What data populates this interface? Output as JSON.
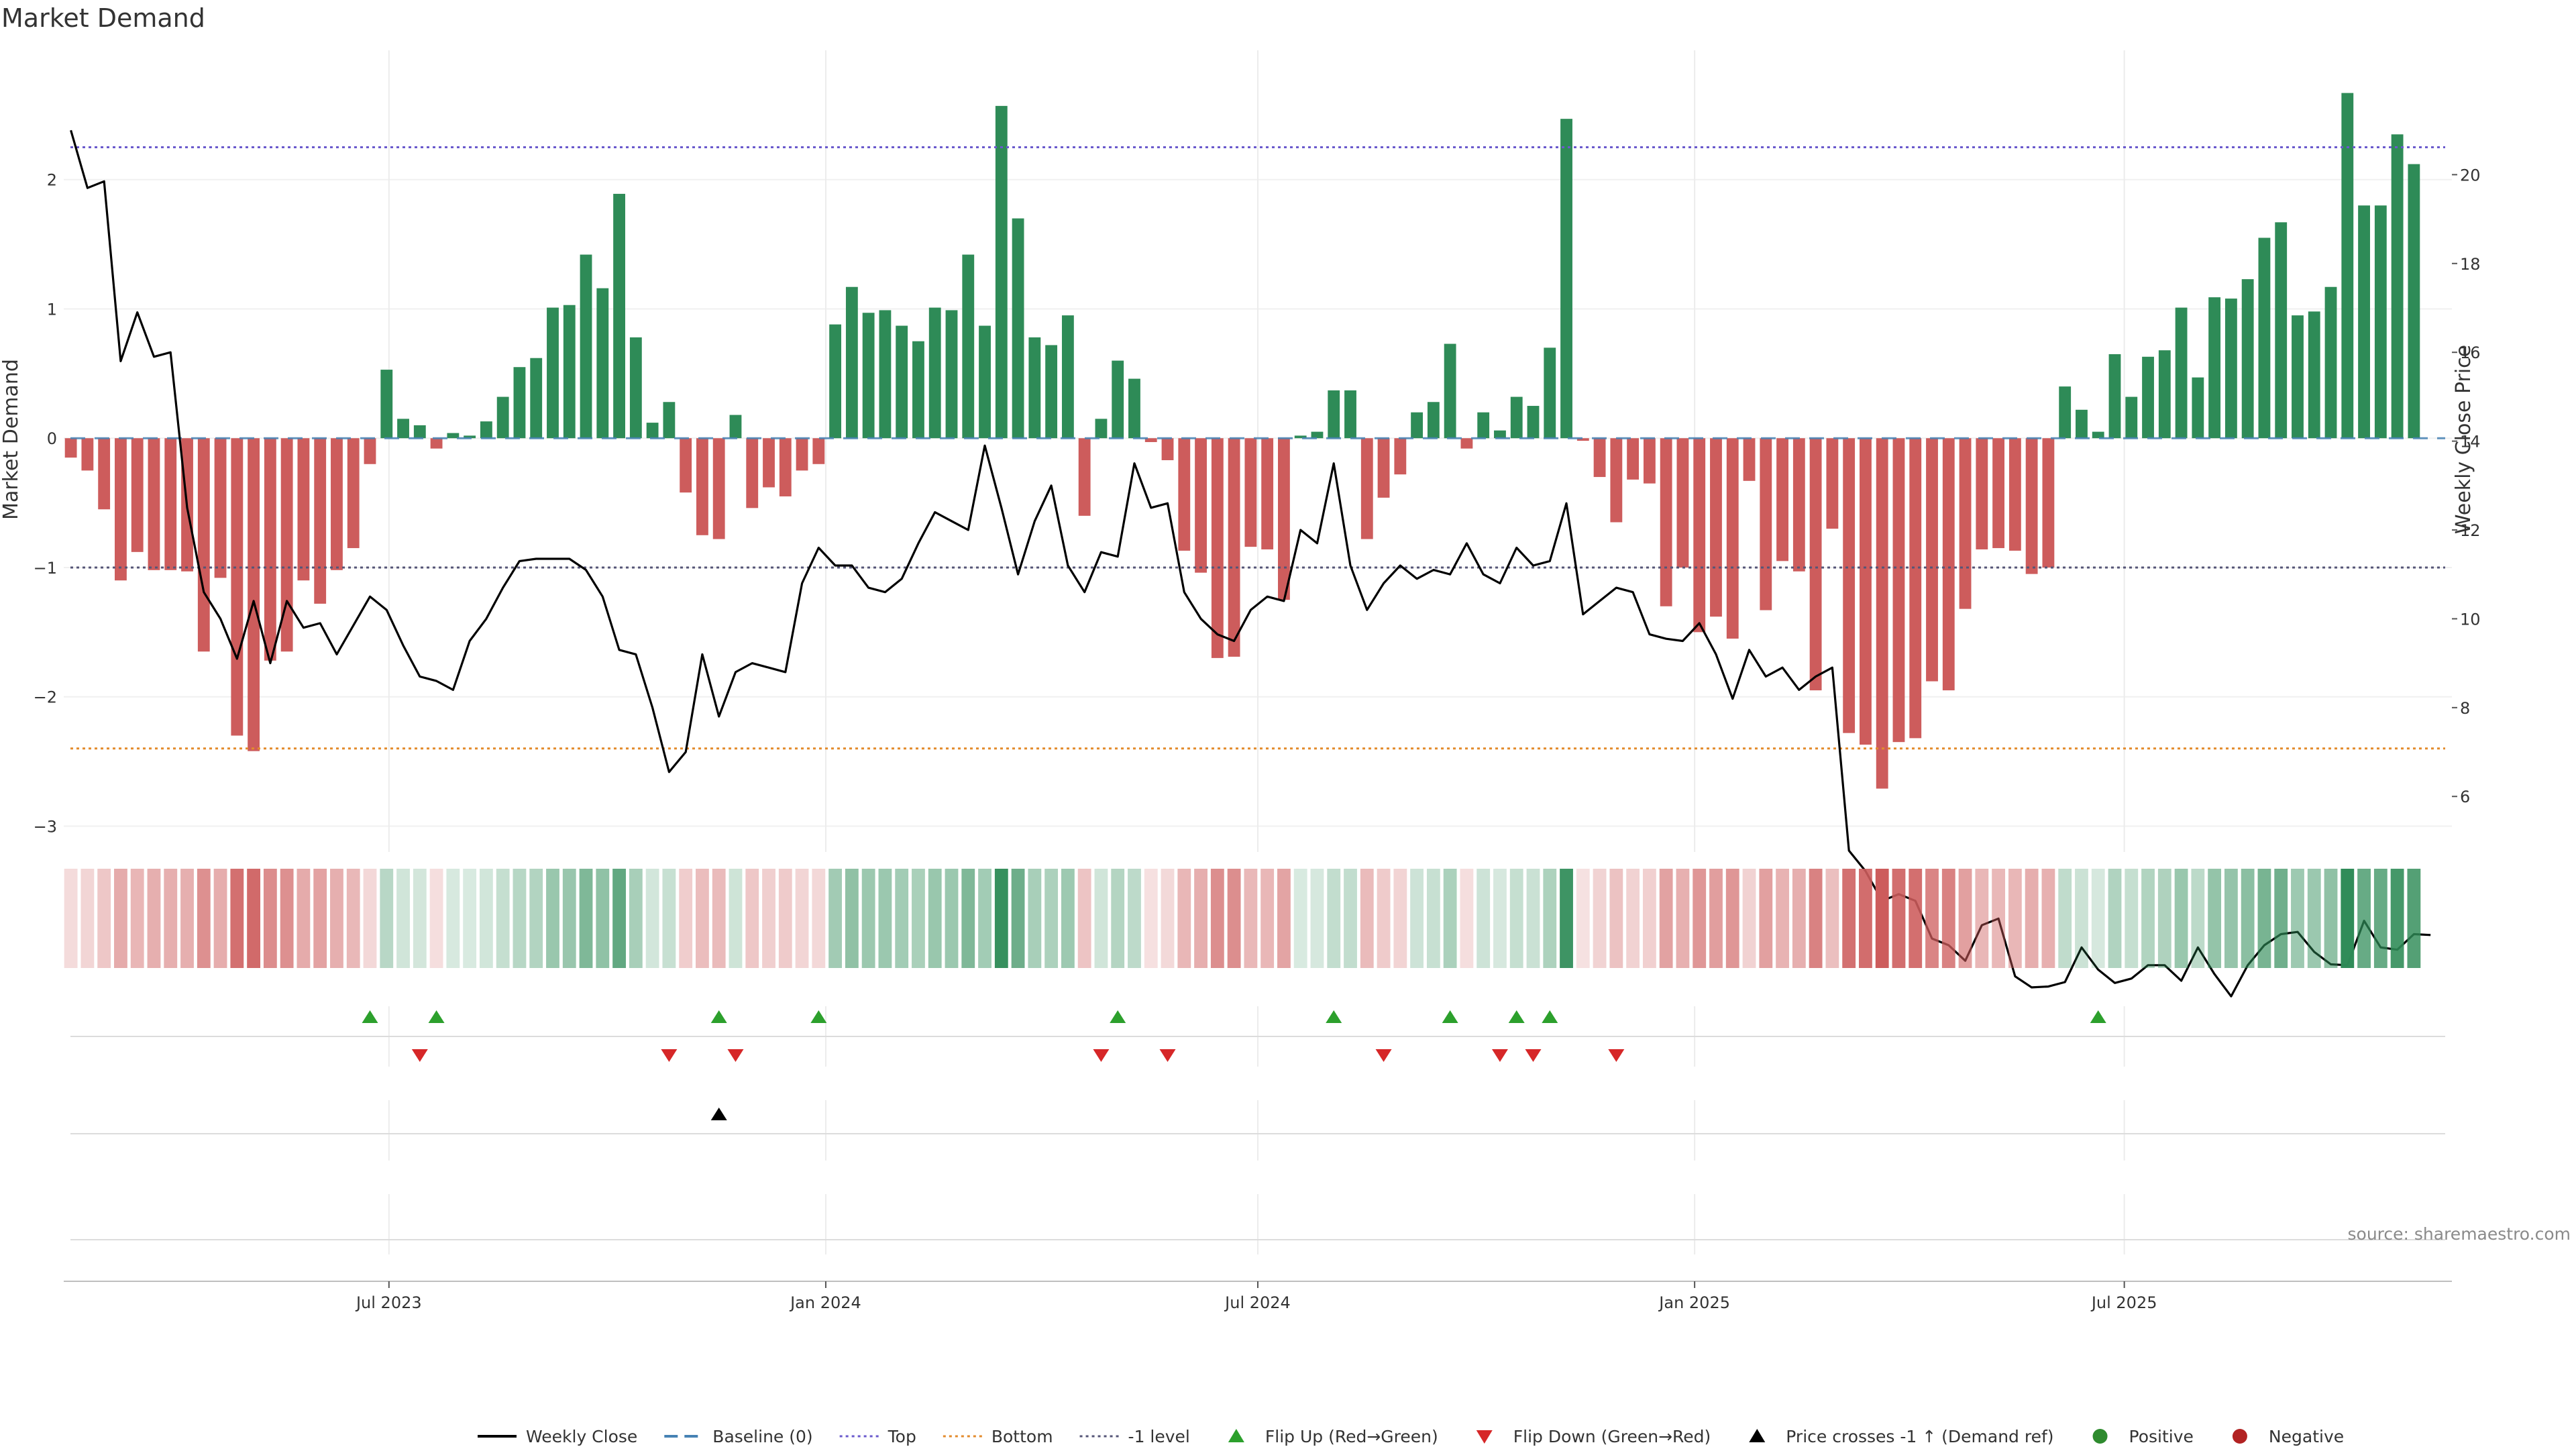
{
  "chart_data": {
    "type": "bar",
    "title": "Market Demand",
    "ylabel": "Market Demand",
    "y2label": "Weekly Close Price",
    "ylim": [
      -3.2,
      3.0
    ],
    "y2lim": [
      4.75,
      22.8
    ],
    "yticks": [
      -3,
      -2,
      -1,
      0,
      1,
      2
    ],
    "y2ticks": [
      6,
      8,
      10,
      12,
      14,
      16,
      18,
      20
    ],
    "x_start": "2023-02-17",
    "x_interval_days": 7,
    "xlim": [
      "2023-02-14",
      "2025-11-16"
    ],
    "x_ticks": [
      {
        "date": "2023-07-01",
        "label": "Jul 2023"
      },
      {
        "date": "2024-01-01",
        "label": "Jan 2024"
      },
      {
        "date": "2024-07-01",
        "label": "Jul 2024"
      },
      {
        "date": "2025-01-01",
        "label": "Jan 2025"
      },
      {
        "date": "2025-07-01",
        "label": "Jul 2025"
      }
    ],
    "reference_lines": {
      "top": 2.25,
      "bottom": -2.4,
      "minus_one": -1.0,
      "baseline": 0
    },
    "colors": {
      "positive": "#2e8b57",
      "negative": "#cd5c5c",
      "price": "#000000",
      "top": "#6a5acd",
      "bottom": "#e38b2c",
      "minus_one": "#555577",
      "baseline": "#4682b4",
      "flip_up": "#2ca02c",
      "flip_down": "#d62728",
      "cross": "#000000",
      "positive_marker": "#2e8b2e",
      "negative_marker": "#b22222"
    },
    "demand": [
      -0.15,
      -0.25,
      -0.55,
      -1.1,
      -0.88,
      -1.02,
      -1.02,
      -1.03,
      -1.65,
      -1.08,
      -2.3,
      -2.42,
      -1.72,
      -1.65,
      -1.1,
      -1.28,
      -1.02,
      -0.85,
      -0.2,
      0.53,
      0.15,
      0.1,
      -0.08,
      0.04,
      0.02,
      0.13,
      0.32,
      0.55,
      0.62,
      1.01,
      1.03,
      1.42,
      1.16,
      1.89,
      0.78,
      0.12,
      0.28,
      -0.42,
      -0.75,
      -0.78,
      0.18,
      -0.54,
      -0.38,
      -0.45,
      -0.25,
      -0.2,
      0.88,
      1.17,
      0.97,
      0.99,
      0.87,
      0.75,
      1.01,
      0.99,
      1.42,
      0.87,
      2.57,
      1.7,
      0.78,
      0.72,
      0.95,
      -0.6,
      0.15,
      0.6,
      0.46,
      -0.03,
      -0.17,
      -0.87,
      -1.04,
      -1.7,
      -1.69,
      -0.84,
      -0.86,
      -1.25,
      0.02,
      0.05,
      0.37,
      0.37,
      -0.78,
      -0.46,
      -0.28,
      0.2,
      0.28,
      0.73,
      -0.08,
      0.2,
      0.06,
      0.32,
      0.25,
      0.7,
      2.47,
      -0.02,
      -0.3,
      -0.65,
      -0.32,
      -0.35,
      -1.3,
      -1.0,
      -1.5,
      -1.38,
      -1.55,
      -0.33,
      -1.33,
      -0.95,
      -1.03,
      -1.95,
      -0.7,
      -2.28,
      -2.37,
      -2.71,
      -2.35,
      -2.32,
      -1.88,
      -1.95,
      -1.32,
      -0.86,
      -0.85,
      -0.87,
      -1.05,
      -1.0,
      0.4,
      0.22,
      0.05,
      0.65,
      0.32,
      0.63,
      0.68,
      1.01,
      0.47,
      1.09,
      1.08,
      1.23,
      1.55,
      1.67,
      0.95,
      0.98,
      1.17,
      2.67,
      1.8,
      1.8,
      2.35,
      2.12
    ],
    "price": [
      21.0,
      19.7,
      19.85,
      15.8,
      16.9,
      15.9,
      16.0,
      12.5,
      10.6,
      10.0,
      9.1,
      10.4,
      9.0,
      10.4,
      9.8,
      9.9,
      9.2,
      9.85,
      10.5,
      10.2,
      9.4,
      8.7,
      8.6,
      8.4,
      9.5,
      10.0,
      10.7,
      11.3,
      11.35,
      11.35,
      11.35,
      11.1,
      10.5,
      9.3,
      9.2,
      8.0,
      6.55,
      7.0,
      9.2,
      7.8,
      8.8,
      9.0,
      8.9,
      8.8,
      10.8,
      11.6,
      11.2,
      11.2,
      10.7,
      10.6,
      10.9,
      11.7,
      12.4,
      12.2,
      12.0,
      13.9,
      12.5,
      11.0,
      12.2,
      13.0,
      11.2,
      10.6,
      11.5,
      11.4,
      13.5,
      12.5,
      12.6,
      10.6,
      10.0,
      9.65,
      9.5,
      10.2,
      10.5,
      10.4,
      12.0,
      11.7,
      13.5,
      11.2,
      10.2,
      10.8,
      11.2,
      10.9,
      11.1,
      11.0,
      11.7,
      11.0,
      10.8,
      11.6,
      11.2,
      11.3,
      12.6,
      10.1,
      10.4,
      10.7,
      10.6,
      9.65,
      9.55,
      9.5,
      9.9,
      9.2,
      8.2,
      9.3,
      8.7,
      8.9,
      8.4,
      8.7,
      8.9,
      4.78,
      4.32,
      3.65,
      3.8,
      3.65,
      2.8,
      2.65,
      2.3,
      3.1,
      3.25,
      1.95,
      1.7,
      1.72,
      1.82,
      2.6,
      2.1,
      1.8,
      1.9,
      2.2,
      2.2,
      1.85,
      2.6,
      2.0,
      1.5,
      2.2,
      2.65,
      2.9,
      2.95,
      2.5,
      2.22,
      2.2,
      3.2,
      2.6,
      2.55,
      2.9,
      2.88
    ],
    "flip_up_weeks": [
      18,
      22,
      39,
      45,
      63,
      76,
      83,
      87,
      89,
      122
    ],
    "flip_down_weeks": [
      21,
      36,
      40,
      62,
      66,
      79,
      86,
      88,
      93
    ],
    "price_cross_weeks": [
      39
    ],
    "legend": [
      {
        "key": "price",
        "label": "Weekly Close"
      },
      {
        "key": "baseline",
        "label": "Baseline (0)"
      },
      {
        "key": "top",
        "label": "Top"
      },
      {
        "key": "bottom",
        "label": "Bottom"
      },
      {
        "key": "minus_one",
        "label": "-1 level"
      },
      {
        "key": "flip_up",
        "label": "Flip Up (Red→Green)"
      },
      {
        "key": "flip_down",
        "label": "Flip Down (Green→Red)"
      },
      {
        "key": "cross",
        "label": "Price crosses -1 ↑ (Demand ref)"
      },
      {
        "key": "positive_marker",
        "label": "Positive"
      },
      {
        "key": "negative_marker",
        "label": "Negative"
      }
    ],
    "legend_placement": "bottom-center",
    "source": "source: sharemaestro.com"
  }
}
